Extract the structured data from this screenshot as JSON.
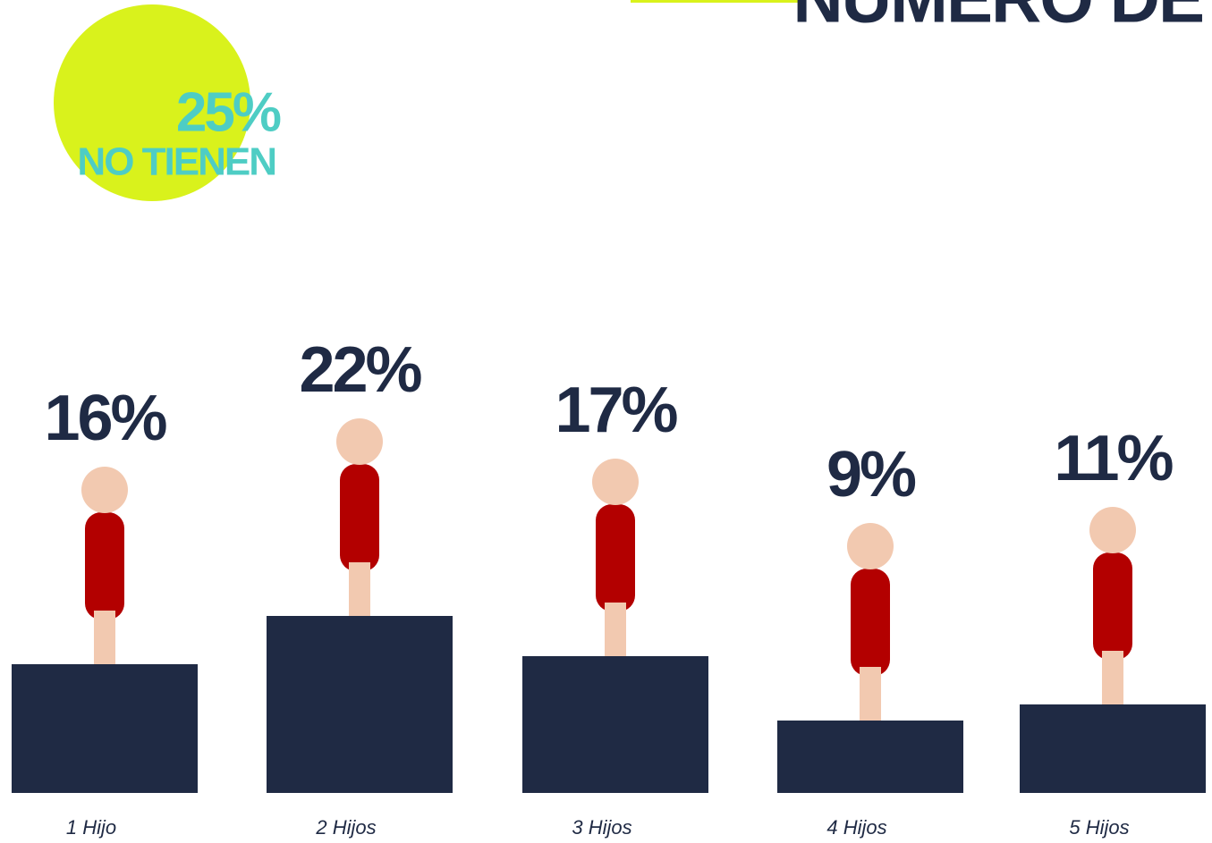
{
  "chart_data": {
    "type": "bar",
    "title": "NÚMERO DE",
    "categories": [
      "1 Hijo",
      "2 Hijos",
      "3 Hijos",
      "4 Hijos",
      "5 Hijos"
    ],
    "values": [
      16,
      22,
      17,
      9,
      11
    ],
    "value_labels": [
      "16%",
      "22%",
      "17%",
      "9%",
      "11%"
    ],
    "color": "#1f2a44",
    "note_value": 25,
    "note_value_label": "25%",
    "note_text": "NO TIENEN"
  }
}
